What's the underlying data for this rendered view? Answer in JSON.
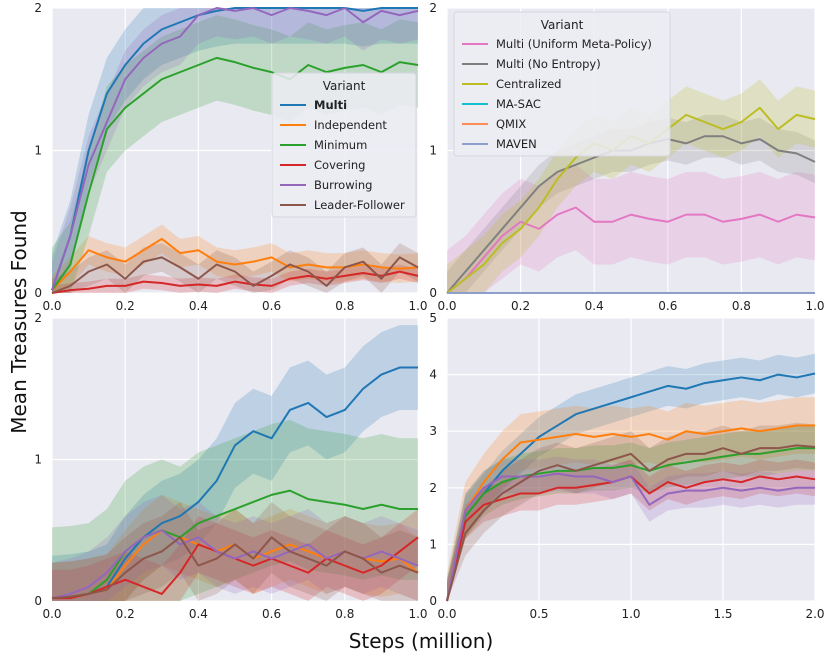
{
  "figure": {
    "xlabel": "Steps (million)",
    "ylabel": "Mean Treasures Found",
    "colors": {
      "Multi": "#1f77b4",
      "Independent": "#ff7f0e",
      "Minimum": "#2ca02c",
      "Covering": "#d62728",
      "Burrowing": "#9467bd",
      "Leader-Follower": "#8c564b",
      "Multi (Uniform Meta-Policy)": "#e377c2",
      "Multi (No Entropy)": "#7f7f7f",
      "Centralized": "#bcbd22",
      "MA-SAC": "#17becf",
      "QMIX": "#ff8c55",
      "MAVEN": "#8da0cb"
    }
  },
  "chart_data": [
    {
      "type": "line",
      "panel": "top-left",
      "xlim": [
        0,
        1.0
      ],
      "ylim": [
        0,
        2
      ],
      "xticks": [
        "0.0",
        "0.2",
        "0.4",
        "0.6",
        "0.8",
        "1.0"
      ],
      "yticks": [
        "0",
        "1",
        "2"
      ],
      "legend": {
        "title": "Variant",
        "position": "right",
        "entries": [
          "Multi",
          "Independent",
          "Minimum",
          "Covering",
          "Burrowing",
          "Leader-Follower"
        ],
        "bold": "Multi"
      },
      "x": [
        0,
        0.05,
        0.1,
        0.15,
        0.2,
        0.25,
        0.3,
        0.35,
        0.4,
        0.45,
        0.5,
        0.55,
        0.6,
        0.65,
        0.7,
        0.75,
        0.8,
        0.85,
        0.9,
        0.95,
        1.0
      ],
      "series": [
        {
          "name": "Multi",
          "values": [
            0.02,
            0.4,
            1.0,
            1.4,
            1.6,
            1.75,
            1.85,
            1.9,
            1.95,
            1.98,
            2.0,
            2.0,
            2.0,
            2.0,
            2.0,
            2.0,
            2.0,
            1.98,
            2.0,
            2.0,
            2.0
          ],
          "band": 0.25
        },
        {
          "name": "Independent",
          "values": [
            0.02,
            0.15,
            0.3,
            0.25,
            0.22,
            0.3,
            0.38,
            0.28,
            0.3,
            0.22,
            0.2,
            0.22,
            0.25,
            0.18,
            0.2,
            0.18,
            0.18,
            0.2,
            0.18,
            0.17,
            0.18
          ],
          "band": 0.1
        },
        {
          "name": "Minimum",
          "values": [
            0.02,
            0.2,
            0.7,
            1.15,
            1.3,
            1.4,
            1.5,
            1.55,
            1.6,
            1.65,
            1.62,
            1.58,
            1.55,
            1.5,
            1.6,
            1.55,
            1.58,
            1.6,
            1.55,
            1.62,
            1.6
          ],
          "band": 0.3
        },
        {
          "name": "Covering",
          "values": [
            0.0,
            0.02,
            0.03,
            0.05,
            0.05,
            0.08,
            0.07,
            0.05,
            0.06,
            0.05,
            0.08,
            0.06,
            0.05,
            0.1,
            0.12,
            0.1,
            0.12,
            0.14,
            0.12,
            0.15,
            0.12
          ],
          "band": 0.05
        },
        {
          "name": "Burrowing",
          "values": [
            0.02,
            0.4,
            0.9,
            1.2,
            1.5,
            1.65,
            1.75,
            1.8,
            1.95,
            2.0,
            1.98,
            2.0,
            1.95,
            2.0,
            1.98,
            1.95,
            2.0,
            1.9,
            1.98,
            1.95,
            1.98
          ],
          "band": 0.2
        },
        {
          "name": "Leader-Follower",
          "values": [
            0.0,
            0.05,
            0.15,
            0.2,
            0.1,
            0.22,
            0.25,
            0.18,
            0.1,
            0.2,
            0.15,
            0.05,
            0.12,
            0.2,
            0.15,
            0.05,
            0.18,
            0.22,
            0.1,
            0.25,
            0.18
          ],
          "band": 0.1
        }
      ]
    },
    {
      "type": "line",
      "panel": "top-right",
      "xlim": [
        0,
        1.0
      ],
      "ylim": [
        0,
        2
      ],
      "xticks": [
        "0.0",
        "0.2",
        "0.4",
        "0.6",
        "0.8",
        "1.0"
      ],
      "yticks": [
        "0",
        "1",
        "2"
      ],
      "legend": {
        "title": "Variant",
        "position": "top-left",
        "entries": [
          "Multi (Uniform Meta-Policy)",
          "Multi (No Entropy)",
          "Centralized",
          "MA-SAC",
          "QMIX",
          "MAVEN"
        ]
      },
      "x": [
        0,
        0.05,
        0.1,
        0.15,
        0.2,
        0.25,
        0.3,
        0.35,
        0.4,
        0.45,
        0.5,
        0.55,
        0.6,
        0.65,
        0.7,
        0.75,
        0.8,
        0.85,
        0.9,
        0.95,
        1.0
      ],
      "series": [
        {
          "name": "Multi (Uniform Meta-Policy)",
          "values": [
            0.0,
            0.1,
            0.25,
            0.4,
            0.5,
            0.45,
            0.55,
            0.6,
            0.5,
            0.5,
            0.55,
            0.52,
            0.5,
            0.55,
            0.55,
            0.5,
            0.52,
            0.55,
            0.5,
            0.55,
            0.53
          ],
          "band": 0.3
        },
        {
          "name": "Multi (No Entropy)",
          "values": [
            0.0,
            0.15,
            0.3,
            0.45,
            0.6,
            0.75,
            0.85,
            0.9,
            0.95,
            1.0,
            1.0,
            1.05,
            1.08,
            1.05,
            1.1,
            1.1,
            1.05,
            1.08,
            1.0,
            0.98,
            0.92
          ],
          "band": 0.15
        },
        {
          "name": "Centralized",
          "values": [
            0.0,
            0.1,
            0.2,
            0.35,
            0.45,
            0.6,
            0.8,
            0.95,
            1.05,
            1.0,
            1.1,
            1.05,
            1.15,
            1.25,
            1.2,
            1.15,
            1.2,
            1.3,
            1.15,
            1.25,
            1.22
          ],
          "band": 0.2
        },
        {
          "name": "MA-SAC",
          "values": [
            0,
            0,
            0,
            0,
            0,
            0,
            0,
            0,
            0,
            0,
            0,
            0,
            0,
            0,
            0,
            0,
            0,
            0,
            0,
            0,
            0
          ],
          "band": 0
        },
        {
          "name": "QMIX",
          "values": [
            0,
            0,
            0,
            0,
            0,
            0,
            0,
            0,
            0,
            0,
            0,
            0,
            0,
            0,
            0,
            0,
            0,
            0,
            0,
            0,
            0
          ],
          "band": 0
        },
        {
          "name": "MAVEN",
          "values": [
            0,
            0,
            0,
            0,
            0,
            0,
            0,
            0,
            0,
            0,
            0,
            0,
            0,
            0,
            0,
            0,
            0,
            0,
            0,
            0,
            0
          ],
          "band": 0
        }
      ]
    },
    {
      "type": "line",
      "panel": "bottom-left",
      "xlim": [
        0,
        1.0
      ],
      "ylim": [
        0,
        2
      ],
      "xticks": [
        "0.0",
        "0.2",
        "0.4",
        "0.6",
        "0.8",
        "1.0"
      ],
      "yticks": [
        "0",
        "1",
        "2"
      ],
      "x": [
        0,
        0.05,
        0.1,
        0.15,
        0.2,
        0.25,
        0.3,
        0.35,
        0.4,
        0.45,
        0.5,
        0.55,
        0.6,
        0.65,
        0.7,
        0.75,
        0.8,
        0.85,
        0.9,
        0.95,
        1.0
      ],
      "series": [
        {
          "name": "Multi",
          "values": [
            0.02,
            0.03,
            0.05,
            0.1,
            0.3,
            0.45,
            0.55,
            0.6,
            0.7,
            0.85,
            1.1,
            1.2,
            1.15,
            1.35,
            1.4,
            1.3,
            1.35,
            1.5,
            1.6,
            1.65,
            1.65
          ],
          "band": 0.3
        },
        {
          "name": "Independent",
          "values": [
            0.02,
            0.03,
            0.05,
            0.08,
            0.25,
            0.4,
            0.5,
            0.45,
            0.4,
            0.35,
            0.4,
            0.3,
            0.35,
            0.4,
            0.35,
            0.3,
            0.35,
            0.3,
            0.28,
            0.3,
            0.2
          ],
          "band": 0.25
        },
        {
          "name": "Minimum",
          "values": [
            0.02,
            0.03,
            0.05,
            0.15,
            0.35,
            0.45,
            0.5,
            0.45,
            0.55,
            0.6,
            0.65,
            0.7,
            0.75,
            0.78,
            0.72,
            0.7,
            0.68,
            0.65,
            0.68,
            0.65,
            0.65
          ],
          "band": 0.5
        },
        {
          "name": "Covering",
          "values": [
            0.02,
            0.02,
            0.05,
            0.1,
            0.15,
            0.1,
            0.05,
            0.2,
            0.4,
            0.35,
            0.3,
            0.25,
            0.3,
            0.25,
            0.2,
            0.3,
            0.25,
            0.2,
            0.25,
            0.35,
            0.45
          ],
          "band": 0.2
        },
        {
          "name": "Burrowing",
          "values": [
            0.02,
            0.05,
            0.1,
            0.2,
            0.35,
            0.45,
            0.5,
            0.4,
            0.45,
            0.35,
            0.3,
            0.35,
            0.3,
            0.35,
            0.4,
            0.3,
            0.35,
            0.3,
            0.35,
            0.3,
            0.25
          ],
          "band": 0.25
        },
        {
          "name": "Leader-Follower",
          "values": [
            0.02,
            0.03,
            0.05,
            0.08,
            0.2,
            0.3,
            0.35,
            0.45,
            0.25,
            0.3,
            0.4,
            0.3,
            0.45,
            0.35,
            0.3,
            0.25,
            0.35,
            0.3,
            0.2,
            0.25,
            0.2
          ],
          "band": 0.25
        }
      ]
    },
    {
      "type": "line",
      "panel": "bottom-right",
      "xlim": [
        0,
        2.0
      ],
      "ylim": [
        0,
        5
      ],
      "xticks": [
        "0.0",
        "0.5",
        "1.0",
        "1.5",
        "2.0"
      ],
      "yticks": [
        "0",
        "1",
        "2",
        "3",
        "4",
        "5"
      ],
      "x": [
        0,
        0.1,
        0.2,
        0.3,
        0.4,
        0.5,
        0.6,
        0.7,
        0.8,
        0.9,
        1.0,
        1.1,
        1.2,
        1.3,
        1.4,
        1.5,
        1.6,
        1.7,
        1.8,
        1.9,
        2.0
      ],
      "series": [
        {
          "name": "Multi",
          "values": [
            0.0,
            1.5,
            1.9,
            2.3,
            2.6,
            2.9,
            3.1,
            3.3,
            3.4,
            3.5,
            3.6,
            3.7,
            3.8,
            3.75,
            3.85,
            3.9,
            3.95,
            3.9,
            4.0,
            3.95,
            4.02
          ],
          "band": 0.35
        },
        {
          "name": "Independent",
          "values": [
            0.0,
            1.6,
            2.1,
            2.5,
            2.8,
            2.85,
            2.9,
            2.95,
            2.9,
            2.95,
            2.9,
            2.95,
            2.85,
            3.0,
            2.95,
            3.0,
            3.05,
            3.0,
            3.05,
            3.1,
            3.1
          ],
          "band": 0.5
        },
        {
          "name": "Minimum",
          "values": [
            0.0,
            1.5,
            1.9,
            2.1,
            2.2,
            2.25,
            2.3,
            2.3,
            2.35,
            2.35,
            2.4,
            2.3,
            2.4,
            2.45,
            2.5,
            2.55,
            2.6,
            2.6,
            2.65,
            2.7,
            2.7
          ],
          "band": 0.4
        },
        {
          "name": "Covering",
          "values": [
            0.0,
            1.4,
            1.7,
            1.8,
            1.9,
            1.9,
            2.0,
            2.0,
            2.05,
            2.1,
            2.2,
            1.9,
            2.1,
            2.0,
            2.1,
            2.15,
            2.1,
            2.2,
            2.15,
            2.2,
            2.15
          ],
          "band": 0.3
        },
        {
          "name": "Burrowing",
          "values": [
            0.0,
            1.6,
            2.0,
            2.2,
            2.2,
            2.2,
            2.25,
            2.2,
            2.2,
            2.1,
            2.2,
            1.7,
            1.9,
            1.95,
            1.95,
            2.0,
            1.95,
            2.0,
            1.95,
            2.0,
            2.0
          ],
          "band": 0.3
        },
        {
          "name": "Leader-Follower",
          "values": [
            0.0,
            1.2,
            1.6,
            1.9,
            2.1,
            2.3,
            2.4,
            2.3,
            2.4,
            2.5,
            2.6,
            2.3,
            2.5,
            2.6,
            2.6,
            2.7,
            2.6,
            2.7,
            2.7,
            2.75,
            2.72
          ],
          "band": 0.4
        }
      ]
    }
  ]
}
